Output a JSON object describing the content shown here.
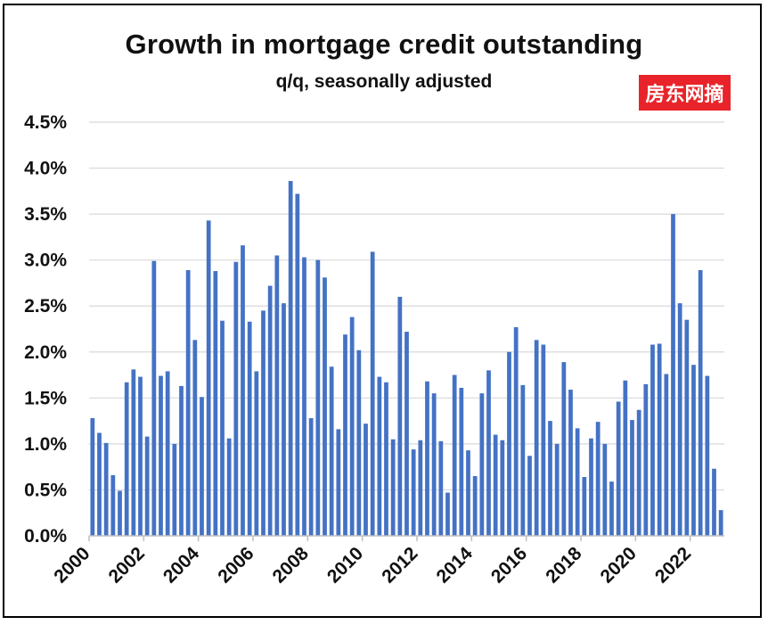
{
  "chart_data": {
    "type": "bar",
    "title": "Growth in mortgage credit outstanding",
    "subtitle": "q/q, seasonally adjusted",
    "watermark": "房东网摘",
    "xlabel": "",
    "ylabel": "",
    "ylim": [
      0,
      4.5
    ],
    "y_ticks": [
      "0.0%",
      "0.5%",
      "1.0%",
      "1.5%",
      "2.0%",
      "2.5%",
      "3.0%",
      "3.5%",
      "4.0%",
      "4.5%"
    ],
    "x_ticks": [
      "2000",
      "2002",
      "2004",
      "2006",
      "2008",
      "2010",
      "2012",
      "2014",
      "2016",
      "2018",
      "2020",
      "2022"
    ],
    "grid": true,
    "legend": "none",
    "color": "#4472C4",
    "categories": [
      "2000Q1",
      "2000Q2",
      "2000Q3",
      "2000Q4",
      "2001Q1",
      "2001Q2",
      "2001Q3",
      "2001Q4",
      "2002Q1",
      "2002Q2",
      "2002Q3",
      "2002Q4",
      "2003Q1",
      "2003Q2",
      "2003Q3",
      "2003Q4",
      "2004Q1",
      "2004Q2",
      "2004Q3",
      "2004Q4",
      "2005Q1",
      "2005Q2",
      "2005Q3",
      "2005Q4",
      "2006Q1",
      "2006Q2",
      "2006Q3",
      "2006Q4",
      "2007Q1",
      "2007Q2",
      "2007Q3",
      "2007Q4",
      "2008Q1",
      "2008Q2",
      "2008Q3",
      "2008Q4",
      "2009Q1",
      "2009Q2",
      "2009Q3",
      "2009Q4",
      "2010Q1",
      "2010Q2",
      "2010Q3",
      "2010Q4",
      "2011Q1",
      "2011Q2",
      "2011Q3",
      "2011Q4",
      "2012Q1",
      "2012Q2",
      "2012Q3",
      "2012Q4",
      "2013Q1",
      "2013Q2",
      "2013Q3",
      "2013Q4",
      "2014Q1",
      "2014Q2",
      "2014Q3",
      "2014Q4",
      "2015Q1",
      "2015Q2",
      "2015Q3",
      "2015Q4",
      "2016Q1",
      "2016Q2",
      "2016Q3",
      "2016Q4",
      "2017Q1",
      "2017Q2",
      "2017Q3",
      "2017Q4",
      "2018Q1",
      "2018Q2",
      "2018Q3",
      "2018Q4",
      "2019Q1",
      "2019Q2",
      "2019Q3",
      "2019Q4",
      "2020Q1",
      "2020Q2",
      "2020Q3",
      "2020Q4",
      "2021Q1",
      "2021Q2",
      "2021Q3",
      "2021Q4",
      "2022Q1",
      "2022Q2",
      "2022Q3",
      "2022Q4",
      "2023Q1"
    ],
    "values": [
      1.28,
      1.12,
      1.01,
      0.66,
      0.49,
      1.67,
      1.81,
      1.73,
      1.08,
      2.99,
      1.74,
      1.79,
      1.0,
      1.63,
      2.89,
      2.13,
      1.51,
      3.43,
      2.88,
      2.34,
      1.06,
      2.98,
      3.16,
      2.33,
      1.79,
      2.45,
      2.72,
      3.05,
      2.53,
      3.86,
      3.72,
      3.03,
      1.28,
      3.0,
      2.81,
      1.84,
      1.16,
      2.19,
      2.38,
      2.02,
      1.22,
      3.09,
      1.73,
      1.67,
      1.05,
      2.6,
      2.22,
      0.94,
      1.04,
      1.68,
      1.55,
      1.03,
      0.47,
      1.75,
      1.61,
      0.93,
      0.65,
      1.55,
      1.8,
      1.1,
      1.04,
      2.0,
      2.27,
      1.64,
      0.87,
      2.13,
      2.08,
      1.25,
      1.0,
      1.89,
      1.59,
      1.17,
      0.64,
      1.06,
      1.24,
      1.0,
      0.59,
      1.46,
      1.69,
      1.26,
      1.37,
      1.65,
      2.08,
      2.09,
      1.76,
      3.5,
      2.53,
      2.35,
      1.86,
      2.89,
      1.74,
      0.73,
      0.28
    ]
  }
}
